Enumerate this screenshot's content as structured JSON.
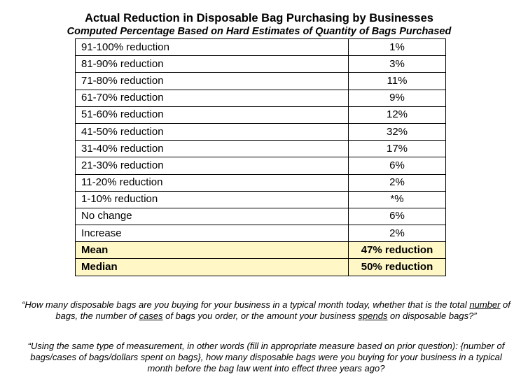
{
  "title": "Actual Reduction in Disposable Bag Purchasing by Businesses",
  "subtitle": "Computed Percentage Based on Hard Estimates of Quantity of Bags Purchased",
  "rows": [
    {
      "label": "91-100% reduction",
      "value": "1%"
    },
    {
      "label": "81-90% reduction",
      "value": "3%"
    },
    {
      "label": "71-80% reduction",
      "value": "11%"
    },
    {
      "label": "61-70% reduction",
      "value": "9%"
    },
    {
      "label": "51-60% reduction",
      "value": "12%"
    },
    {
      "label": "41-50% reduction",
      "value": "32%"
    },
    {
      "label": "31-40% reduction",
      "value": "17%"
    },
    {
      "label": "21-30% reduction",
      "value": "6%"
    },
    {
      "label": "11-20% reduction",
      "value": "2%"
    },
    {
      "label": "1-10% reduction",
      "value": "*%"
    },
    {
      "label": "No change",
      "value": "6%"
    },
    {
      "label": "Increase",
      "value": "2%"
    }
  ],
  "summary": [
    {
      "label": "Mean",
      "value": "47% reduction"
    },
    {
      "label": "Median",
      "value": "50% reduction"
    }
  ],
  "summary_color": "#fff8c6",
  "question_1": {
    "p1": "“How many disposable bags are you buying for your business in a typical month today, whether that is the total ",
    "u1": "number",
    "p2": " of bags, the number of ",
    "u2": "cases",
    "p3": " of bags you order, or the amount your business ",
    "u3": "spends",
    "p4": " on disposable bags?”"
  },
  "question_2": "“Using the same type of measurement, in other words (fill in appropriate measure based on prior question): {number of bags/cases of bags/dollars spent on bags}, how many disposable bags were you buying for your business in a typical month before the bag law went into effect three years ago?"
}
